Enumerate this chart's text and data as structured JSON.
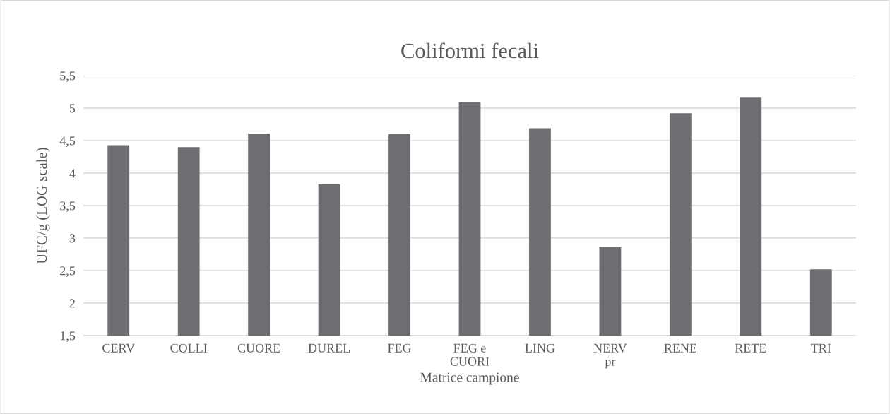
{
  "chart_data": {
    "type": "bar",
    "title": "Coliformi fecali",
    "xlabel": "Matrice campione",
    "ylabel": "UFC/g (LOG scale)",
    "categories": [
      "CERV",
      "COLLI",
      "CUORE",
      "DUREL",
      "FEG",
      "FEG e\nCUORI",
      "LING",
      "NERV\npr",
      "RENE",
      "RETE",
      "TRI"
    ],
    "values": [
      4.43,
      4.4,
      4.61,
      3.83,
      4.6,
      5.09,
      4.69,
      2.86,
      4.92,
      5.16,
      2.52
    ],
    "color": "#6e6d71",
    "ylim": [
      1.5,
      5.5
    ],
    "yticks": [
      {
        "value": 1.5,
        "label": "1,5"
      },
      2,
      {
        "value": 2.5,
        "label": "2,5"
      },
      3,
      {
        "value": 3.5,
        "label": "3,5"
      },
      4,
      {
        "value": 4.5,
        "label": "4,5"
      },
      5,
      {
        "value": 5.5,
        "label": "5,5"
      }
    ],
    "grid": "y"
  }
}
